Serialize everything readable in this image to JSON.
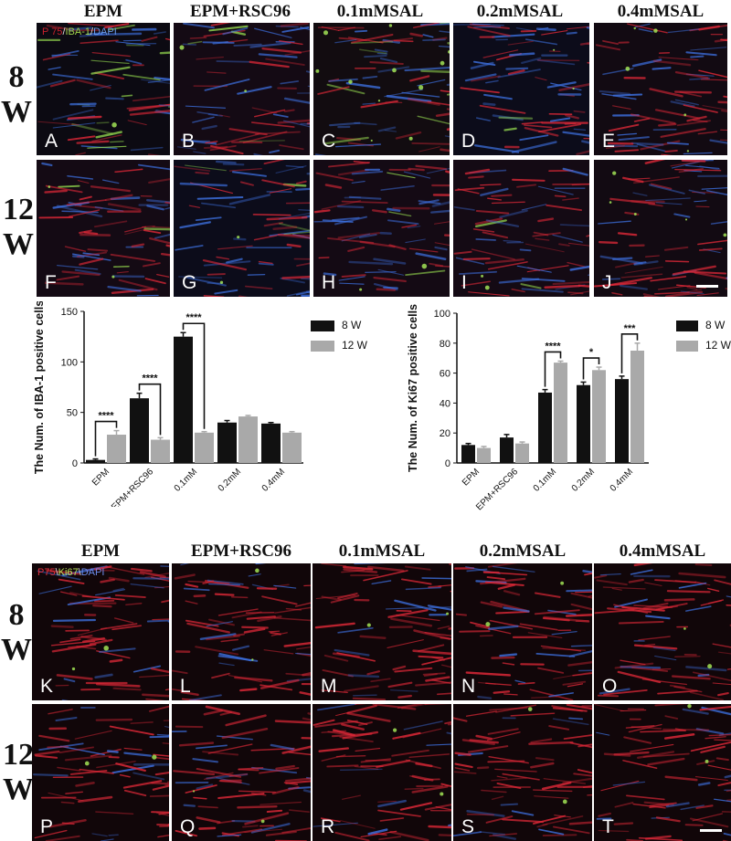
{
  "top_headers": [
    "EPM",
    "EPM+RSC96",
    "0.1mMSAL",
    "0.2mMSAL",
    "0.4mMSAL"
  ],
  "bottom_headers": [
    "EPM",
    "EPM+RSC96",
    "0.1mMSAL",
    "0.2mMSAL",
    "0.4mMSAL"
  ],
  "row_labels": {
    "r8": [
      "8",
      "W"
    ],
    "r12": [
      "12",
      "W"
    ]
  },
  "stain_top": {
    "p75": "P 75",
    "sep1": "/",
    "iba": "IBA-1",
    "sep2": "/",
    "dapi": "DAPI"
  },
  "stain_bottom": {
    "p75": "P75",
    "sep1": "\\",
    "ki67": "Ki67",
    "sep2": "\\",
    "dapi": "DAPI"
  },
  "panel_letters": [
    "A",
    "B",
    "C",
    "D",
    "E",
    "F",
    "G",
    "H",
    "I",
    "J",
    "K",
    "L",
    "M",
    "N",
    "O",
    "P",
    "Q",
    "R",
    "S",
    "T"
  ],
  "colors": {
    "red": "#c8202c",
    "green": "#9fd24a",
    "blue": "#3a6ad0",
    "bar8w": "#111111",
    "bar12w": "#a9a9a9"
  },
  "chart_data": [
    {
      "type": "bar",
      "ylabel": "The Num. of IBA-1 positive cells",
      "categories": [
        "EPM",
        "EPM+RSC96",
        "0.1mM",
        "0.2mM",
        "0.4mM"
      ],
      "ylim": [
        0,
        150
      ],
      "yticks": [
        0,
        50,
        100,
        150
      ],
      "series": [
        {
          "name": "8 W",
          "values": [
            3,
            64,
            125,
            40,
            39
          ],
          "errors": [
            1,
            5,
            4,
            2,
            1
          ]
        },
        {
          "name": "12 W",
          "values": [
            28,
            23,
            30,
            46,
            30
          ],
          "errors": [
            4,
            2,
            1,
            1,
            1
          ]
        }
      ],
      "significance": [
        {
          "category": "EPM",
          "label": "****"
        },
        {
          "category": "EPM+RSC96",
          "label": "****"
        },
        {
          "category": "0.1mM",
          "label": "****"
        }
      ],
      "legend": [
        "8 W",
        "12 W"
      ]
    },
    {
      "type": "bar",
      "ylabel": "The Num. of Ki67 positive cells",
      "categories": [
        "EPM",
        "EPM+RSC96",
        "0.1mM",
        "0.2mM",
        "0.4mM"
      ],
      "ylim": [
        0,
        100
      ],
      "yticks": [
        0,
        20,
        40,
        60,
        80,
        100
      ],
      "series": [
        {
          "name": "8 W",
          "values": [
            12,
            17,
            47,
            52,
            56
          ],
          "errors": [
            1,
            2,
            2,
            2,
            2
          ]
        },
        {
          "name": "12 W",
          "values": [
            10,
            13,
            67,
            62,
            75
          ],
          "errors": [
            1,
            1,
            1,
            2,
            5
          ]
        }
      ],
      "significance": [
        {
          "category": "0.1mM",
          "label": "****"
        },
        {
          "category": "0.2mM",
          "label": "*"
        },
        {
          "category": "0.4mM",
          "label": "***"
        }
      ],
      "legend": [
        "8 W",
        "12 W"
      ]
    }
  ]
}
